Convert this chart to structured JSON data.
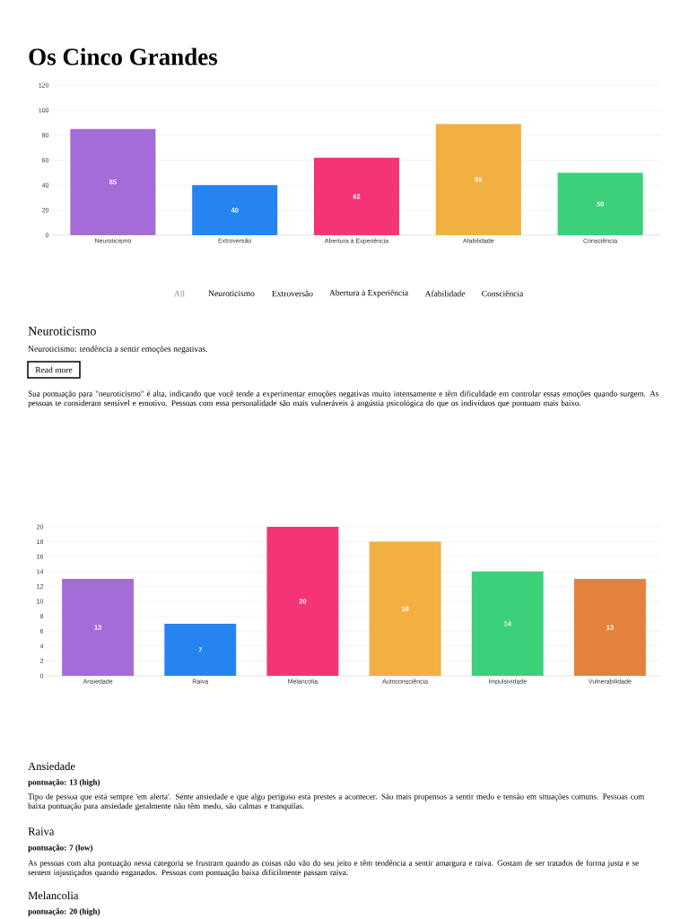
{
  "chart_data": [
    {
      "type": "bar",
      "title": "Os Cinco Grandes",
      "categories": [
        "Neuroticismo",
        "Extroversão",
        "Abertura à Experiência",
        "Afabilidade",
        "Consciência"
      ],
      "values": [
        85,
        40,
        62,
        89,
        50
      ],
      "colors": [
        "#a36cd9",
        "#2584f0",
        "#f43477",
        "#f2af42",
        "#3bd17a"
      ],
      "ylim": [
        0,
        120
      ],
      "yticks": [
        0,
        20,
        40,
        60,
        80,
        100,
        120
      ],
      "grid": "y",
      "data_labels": true,
      "annotations": [
        "All",
        "Neuroticismo",
        "Extroversão",
        "Abertura à Experiência",
        "Afabilidade",
        "Consciência",
        "Neuroticismo",
        "Neuroticismo: tendência a sentir emoções negativas.",
        "Read more",
        "Sua pontuação para \"neuroticismo\" é alta, indicando que você tende a experimentar emoções negativas muito intensamente e têm dificuldade em controlar essas emoções quando surgem. As pessoas te consideram sensível e emotivo. Pessoas com essa personalidade são mais vulneráveis à angústia psicológica do que os indivíduos que pontuam mais baixo."
      ]
    },
    {
      "type": "bar",
      "categories": [
        "Ansiedade",
        "Raiva",
        "Melancolia",
        "Autoconsciência",
        "Impulsividade",
        "Vulnerabilidade"
      ],
      "values": [
        13,
        7,
        20,
        18,
        14,
        13
      ],
      "colors": [
        "#a36cd9",
        "#2584f0",
        "#f43477",
        "#f2af42",
        "#3bd17a",
        "#e4823c"
      ],
      "ylim": [
        0,
        20
      ],
      "yticks": [
        0,
        2,
        4,
        6,
        8,
        10,
        12,
        14,
        16,
        18,
        20
      ],
      "grid": "y",
      "data_labels": true,
      "annotations": [
        "Ansiedade",
        "pontuação: 13 (high)",
        "Tipo de pessoa que está sempre 'em alerta'. Sente ansiedade e que algo perigoso está prestes a acontecer. São mais propensos a sentir medo e tensão em situações comuns. Pessoas com baixa pontuação para ansiedade geralmente não têm medo, são calmas e tranquilas.",
        "Raiva",
        "pontuação: 7 (low)",
        "As pessoas com alta pontuação nessa categoria se frustram quando as coisas não vão do seu jeito e têm tendência a sentir amargura e raiva. Gostam de ser tratados de forma justa e se sentem injustiçados quando enganados. Pessoas com pontuação baixa dificilmente passam raiva.",
        "Melancolia",
        "pontuação: 20 (high)"
      ]
    }
  ]
}
